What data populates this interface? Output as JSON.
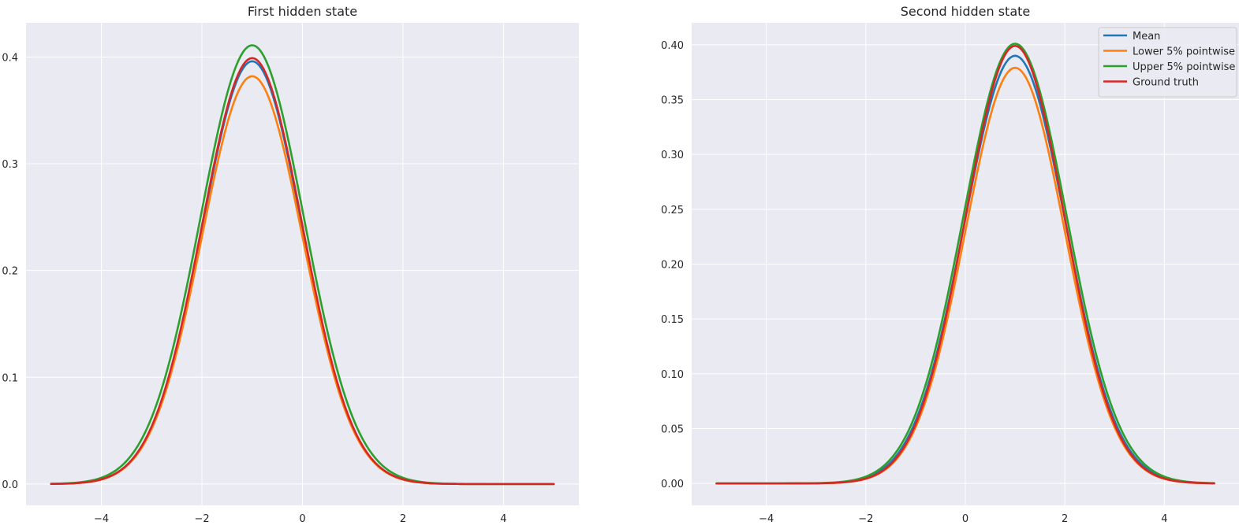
{
  "chart_data": [
    {
      "type": "line",
      "title": "First hidden state",
      "xlabel": "",
      "ylabel": "",
      "xlim": [
        -5.5,
        5.5
      ],
      "ylim": [
        -0.02,
        0.432
      ],
      "xticks": [
        -4,
        -2,
        0,
        2,
        4
      ],
      "xtick_labels": [
        "−4",
        "−2",
        "0",
        "2",
        "4"
      ],
      "yticks": [
        0.0,
        0.1,
        0.2,
        0.3,
        0.4
      ],
      "ytick_labels": [
        "0.0",
        "0.1",
        "0.2",
        "0.3",
        "0.4"
      ],
      "grid": true,
      "legend": null,
      "x_range": [
        -5,
        5
      ],
      "series": [
        {
          "name": "Mean",
          "color": "#1f77b4",
          "curve": "gaussian",
          "peak_x": -1.0,
          "peak_y": 0.396,
          "sigma": 0.997
        },
        {
          "name": "Lower 5% pointwise",
          "color": "#ff7f0e",
          "curve": "gaussian",
          "peak_x": -1.0,
          "peak_y": 0.382,
          "sigma": 1.0
        },
        {
          "name": "Upper 5% pointwise",
          "color": "#2ca02c",
          "curve": "gaussian",
          "peak_x": -1.0,
          "peak_y": 0.411,
          "sigma": 1.03
        },
        {
          "name": "Ground truth",
          "color": "#d62728",
          "curve": "gaussian",
          "peak_x": -1.0,
          "peak_y": 0.399,
          "sigma": 1.0
        }
      ]
    },
    {
      "type": "line",
      "title": "Second hidden state",
      "xlabel": "",
      "ylabel": "",
      "xlim": [
        -5.5,
        5.5
      ],
      "ylim": [
        -0.02,
        0.42
      ],
      "xticks": [
        -4,
        -2,
        0,
        2,
        4
      ],
      "xtick_labels": [
        "−4",
        "−2",
        "0",
        "2",
        "4"
      ],
      "yticks": [
        0.0,
        0.05,
        0.1,
        0.15,
        0.2,
        0.25,
        0.3,
        0.35,
        0.4
      ],
      "ytick_labels": [
        "0.00",
        "0.05",
        "0.10",
        "0.15",
        "0.20",
        "0.25",
        "0.30",
        "0.35",
        "0.40"
      ],
      "grid": true,
      "legend": "top-right",
      "x_range": [
        -5,
        5
      ],
      "series": [
        {
          "name": "Mean",
          "color": "#1f77b4",
          "curve": "gaussian",
          "peak_x": 1.0,
          "peak_y": 0.39,
          "sigma": 1.02
        },
        {
          "name": "Lower 5% pointwise",
          "color": "#ff7f0e",
          "curve": "gaussian",
          "peak_x": 1.0,
          "peak_y": 0.379,
          "sigma": 1.0
        },
        {
          "name": "Upper 5% pointwise",
          "color": "#2ca02c",
          "curve": "gaussian",
          "peak_x": 1.0,
          "peak_y": 0.401,
          "sigma": 1.04
        },
        {
          "name": "Ground truth",
          "color": "#d62728",
          "curve": "gaussian",
          "peak_x": 1.0,
          "peak_y": 0.399,
          "sigma": 1.0
        }
      ]
    }
  ]
}
